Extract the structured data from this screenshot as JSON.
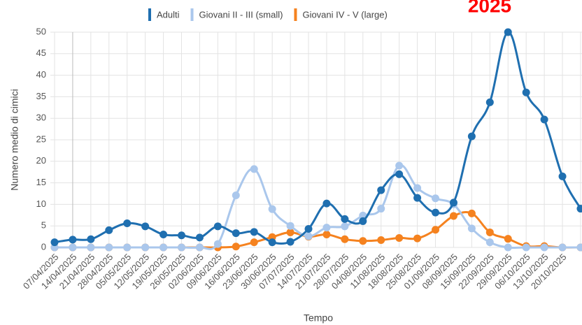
{
  "chart_data": {
    "type": "line",
    "annotation": "2025",
    "x_label": "Tempo",
    "y_label": "Numero medio di cimici",
    "categories": [
      "07/04/2025",
      "14/04/2025",
      "21/04/2025",
      "28/04/2025",
      "05/05/2025",
      "12/05/2025",
      "19/05/2025",
      "26/05/2025",
      "02/06/2025",
      "09/06/2025",
      "16/06/2025",
      "23/06/2025",
      "30/06/2025",
      "07/07/2025",
      "14/07/2025",
      "21/07/2025",
      "28/07/2025",
      "04/08/2025",
      "11/08/2025",
      "18/08/2025",
      "25/08/2025",
      "01/09/2025",
      "08/09/2025",
      "15/09/2025",
      "22/09/2025",
      "29/09/2025",
      "06/10/2025",
      "13/10/2025",
      "20/10/2025",
      null
    ],
    "series": [
      {
        "name": "Adulti",
        "color": "#1f6fb0",
        "values": [
          1.2,
          1.8,
          1.9,
          4.0,
          5.6,
          4.9,
          3.0,
          2.8,
          2.3,
          4.9,
          3.3,
          3.6,
          1.2,
          1.3,
          4.3,
          10.2,
          6.6,
          6.1,
          13.3,
          17.0,
          11.5,
          8.1,
          10.4,
          25.8,
          33.7,
          50,
          36,
          29.7,
          16.5,
          9.0
        ]
      },
      {
        "name": "Giovani II - III (small)",
        "color": "#aac7ec",
        "values": [
          0,
          0,
          0,
          0,
          0,
          0,
          0,
          0,
          0,
          0.8,
          12.1,
          18.2,
          8.9,
          5.0,
          2.6,
          4.6,
          4.9,
          7.4,
          9.0,
          19.0,
          13.8,
          11.4,
          10.0,
          4.4,
          1.2,
          0,
          0,
          0,
          0,
          0
        ]
      },
      {
        "name": "Giovani IV - V (large)",
        "color": "#f5821f",
        "values": [
          0,
          0,
          0,
          0,
          0,
          0,
          0,
          0,
          0,
          0,
          0.2,
          1.2,
          2.4,
          3.5,
          2.5,
          3.0,
          1.9,
          1.5,
          1.7,
          2.2,
          2.1,
          4.1,
          7.3,
          7.9,
          3.5,
          2.0,
          0.3,
          0.3,
          0,
          0
        ]
      }
    ],
    "ylim": [
      0,
      50
    ],
    "yticks": [
      0,
      5,
      10,
      15,
      20,
      25,
      30,
      35,
      40,
      45,
      50
    ],
    "grid": true
  }
}
